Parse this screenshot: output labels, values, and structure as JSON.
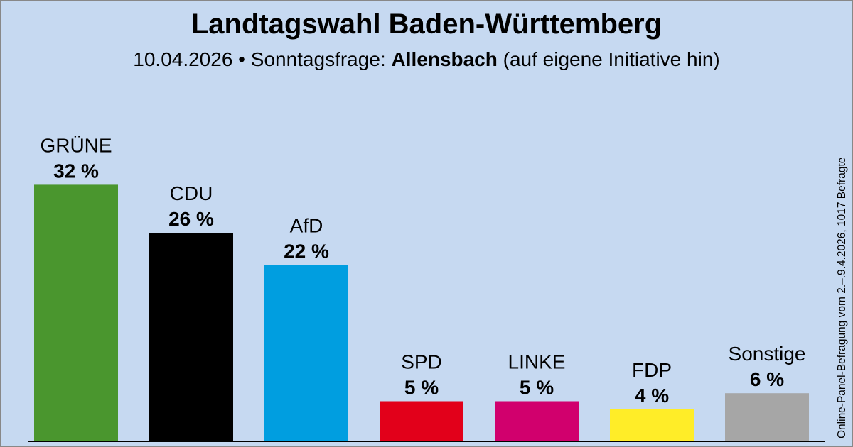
{
  "header": {
    "title": "Landtagswahl Baden-Württemberg",
    "subtitle_date": "10.04.2026 • Sonntagsfrage:",
    "subtitle_institute": "Allensbach",
    "subtitle_note": "(auf eigene Initiative hin)"
  },
  "side_note": "Online-Panel-Befragung vom 2.–.9.4.2026, 1017 Befragte",
  "chart_data": {
    "type": "bar",
    "title": "Landtagswahl Baden-Württemberg",
    "xlabel": "",
    "ylabel": "",
    "ylim": [
      0,
      35
    ],
    "categories": [
      "GRÜNE",
      "CDU",
      "AfD",
      "SPD",
      "LINKE",
      "FDP",
      "Sonstige"
    ],
    "values": [
      32,
      26,
      22,
      5,
      5,
      4,
      6
    ],
    "value_labels": [
      "32 %",
      "26 %",
      "22 %",
      "5 %",
      "5 %",
      "4 %",
      "6 %"
    ],
    "colors": [
      "#4a962e",
      "#000000",
      "#009ee0",
      "#e2001a",
      "#d1006d",
      "#ffed28",
      "#a6a6a6"
    ]
  }
}
